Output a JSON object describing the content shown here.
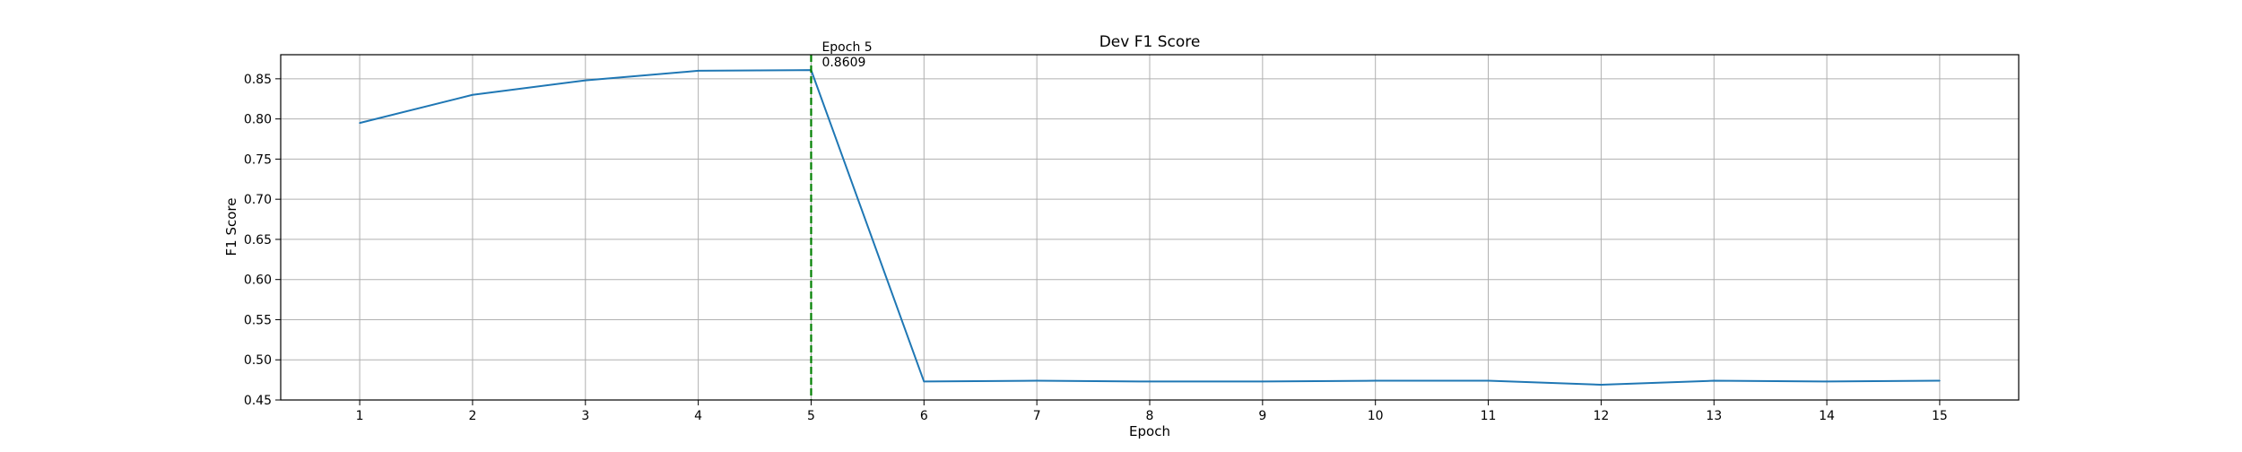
{
  "chart_data": {
    "type": "line",
    "title": "Dev F1 Score",
    "xlabel": "Epoch",
    "ylabel": "F1 Score",
    "x": [
      1,
      2,
      3,
      4,
      5,
      6,
      7,
      8,
      9,
      10,
      11,
      12,
      13,
      14,
      15
    ],
    "series": [
      {
        "values": [
          0.795,
          0.83,
          0.848,
          0.86,
          0.8609,
          0.473,
          0.474,
          0.473,
          0.473,
          0.474,
          0.474,
          0.469,
          0.474,
          0.473,
          0.474
        ],
        "color": "#1f77b4"
      }
    ],
    "xlim": [
      0.3,
      15.7
    ],
    "ylim": [
      0.45,
      0.88
    ],
    "xticks": [
      1,
      2,
      3,
      4,
      5,
      6,
      7,
      8,
      9,
      10,
      11,
      12,
      13,
      14,
      15
    ],
    "yticks": [
      "0.45",
      "0.50",
      "0.55",
      "0.60",
      "0.65",
      "0.70",
      "0.75",
      "0.80",
      "0.85"
    ],
    "grid": true,
    "marker_line": {
      "x": 5,
      "color": "#008000",
      "style": "dashed"
    },
    "annotation": {
      "x": 5,
      "line1": "Epoch 5",
      "line2": "0.8609"
    }
  }
}
